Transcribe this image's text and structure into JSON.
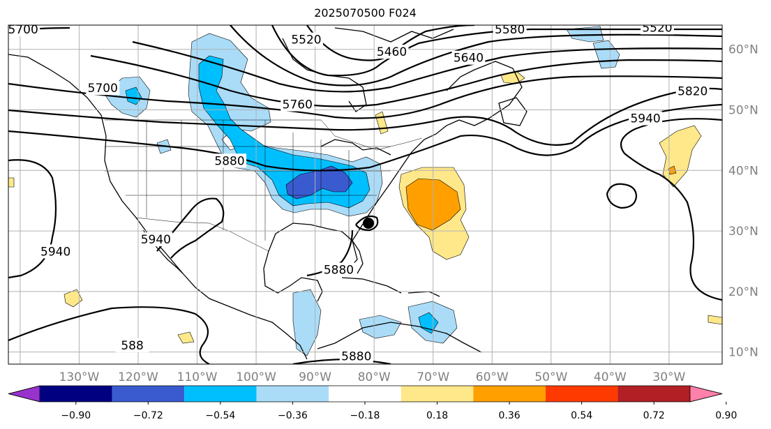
{
  "title": "2025070500 F024",
  "map": {
    "projection": "PlateCarree",
    "lon_range": [
      -142,
      -21
    ],
    "lat_range": [
      8,
      64
    ],
    "gridlines": true,
    "lon_labels": [
      {
        "lon": -130,
        "text": "130°W"
      },
      {
        "lon": -120,
        "text": "120°W"
      },
      {
        "lon": -110,
        "text": "110°W"
      },
      {
        "lon": -100,
        "text": "100°W"
      },
      {
        "lon": -90,
        "text": "90°W"
      },
      {
        "lon": -80,
        "text": "80°W"
      },
      {
        "lon": -70,
        "text": "70°W"
      },
      {
        "lon": -60,
        "text": "60°W"
      },
      {
        "lon": -50,
        "text": "50°W"
      },
      {
        "lon": -40,
        "text": "40°W"
      },
      {
        "lon": -30,
        "text": "30°W"
      }
    ],
    "lat_labels": [
      {
        "lat": 60,
        "text": "60°N"
      },
      {
        "lat": 50,
        "text": "50°N"
      },
      {
        "lat": 40,
        "text": "40°N"
      },
      {
        "lat": 30,
        "text": "30°N"
      },
      {
        "lat": 20,
        "text": "20°N"
      },
      {
        "lat": 10,
        "text": "10°N"
      }
    ],
    "contour_labels": [
      {
        "text": "5700",
        "lon": -139.5,
        "lat": 63.2
      },
      {
        "text": "5520",
        "lon": -91.5,
        "lat": 61.5
      },
      {
        "text": "5460",
        "lon": -77,
        "lat": 59.5
      },
      {
        "text": "5580",
        "lon": -57,
        "lat": 63.2
      },
      {
        "text": "5520",
        "lon": -32,
        "lat": 63.5
      },
      {
        "text": "5640",
        "lon": -64,
        "lat": 58.5
      },
      {
        "text": "5700",
        "lon": -126,
        "lat": 53.5
      },
      {
        "text": "5760",
        "lon": -93,
        "lat": 50.8
      },
      {
        "text": "5820",
        "lon": -26,
        "lat": 53
      },
      {
        "text": "5940",
        "lon": -34,
        "lat": 48.5
      },
      {
        "text": "5880",
        "lon": -104.5,
        "lat": 41.5
      },
      {
        "text": "5940",
        "lon": -117,
        "lat": 28.5
      },
      {
        "text": "5940",
        "lon": -134,
        "lat": 26.5
      },
      {
        "text": "5880",
        "lon": -86,
        "lat": 23.5
      },
      {
        "text": "5880",
        "lon": -83,
        "lat": 9.2
      },
      {
        "text": "588",
        "lon": -121,
        "lat": 11
      }
    ]
  },
  "colorbar": {
    "ticks": [
      "−0.90",
      "−0.72",
      "−0.54",
      "−0.36",
      "−0.18",
      "0.18",
      "0.36",
      "0.54",
      "0.72",
      "0.90"
    ],
    "under_color": "#9932cc",
    "over_color": "#ff80a8",
    "colors": [
      "#000080",
      "#3a5bd0",
      "#00bfff",
      "#aadcf8",
      "#ffffff",
      "#ffe88a",
      "#ffa000",
      "#ff3a00",
      "#b21f24"
    ]
  }
}
